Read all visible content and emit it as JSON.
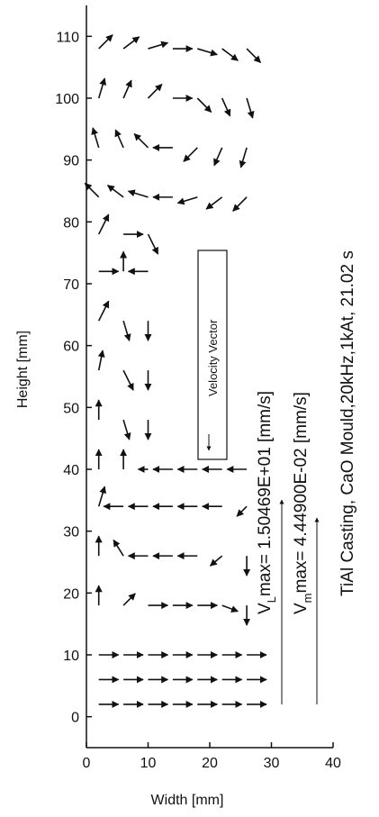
{
  "chart_data": {
    "type": "quiver",
    "xlabel": "Width  [mm]",
    "ylabel": "Height  [mm]",
    "xlim": [
      0,
      40
    ],
    "xticks": [
      0,
      10,
      20,
      30,
      40
    ],
    "ylim": [
      -5,
      115
    ],
    "yticks": [
      0,
      10,
      20,
      30,
      40,
      50,
      60,
      70,
      80,
      90,
      100,
      110
    ],
    "color": "#111111",
    "legend_label": "Velocity Vector",
    "annotations": [
      {
        "symbol": "V",
        "subscript": "L",
        "text": "max=  1.50469E+01  [mm/s]"
      },
      {
        "symbol": "V",
        "subscript": "m",
        "text": "max=  4.44900E-02  [mm/s]"
      },
      {
        "text": "TiAl Casting, CaO Mould,20kHz,1kAt, 21.02 s"
      }
    ],
    "x": [
      2,
      6,
      10,
      14,
      18,
      22,
      26,
      2,
      6,
      10,
      14,
      18,
      22,
      26,
      2,
      6,
      10,
      14,
      18,
      22,
      26,
      2,
      6,
      10,
      14,
      18,
      22,
      26,
      2,
      6,
      10,
      14,
      18,
      22,
      26,
      2,
      6,
      10,
      14,
      18,
      22,
      26,
      2,
      6,
      10,
      14,
      18,
      22,
      26,
      2,
      6,
      10,
      2,
      6,
      10,
      2,
      6,
      10,
      2,
      6,
      10,
      2,
      6,
      10,
      2,
      6,
      10,
      14,
      18,
      22,
      26,
      2,
      6,
      10,
      14,
      18,
      22,
      26,
      2,
      6,
      10,
      14,
      18,
      22,
      26,
      2,
      6,
      10,
      14,
      18,
      22,
      26
    ],
    "y": [
      2,
      2,
      2,
      2,
      2,
      2,
      2,
      6,
      6,
      6,
      6,
      6,
      6,
      6,
      10,
      10,
      10,
      10,
      10,
      10,
      10,
      18,
      18,
      18,
      18,
      18,
      18,
      18,
      26,
      26,
      26,
      26,
      26,
      26,
      26,
      34,
      34,
      34,
      34,
      34,
      34,
      34,
      40,
      40,
      40,
      40,
      40,
      40,
      40,
      48,
      48,
      48,
      56,
      56,
      56,
      64,
      64,
      64,
      72,
      72,
      72,
      78,
      78,
      78,
      84,
      84,
      84,
      84,
      84,
      84,
      84,
      92,
      92,
      92,
      92,
      92,
      92,
      92,
      100,
      100,
      100,
      100,
      100,
      100,
      100,
      108,
      108,
      108,
      108,
      108,
      108,
      108
    ],
    "u": [
      1,
      1,
      1,
      1,
      1,
      1,
      1,
      1,
      1,
      1,
      1,
      1,
      1,
      1,
      1,
      1,
      1,
      1,
      1,
      1,
      1,
      0,
      0.6,
      1,
      1,
      1,
      0.8,
      0,
      0,
      -0.5,
      -1,
      -1,
      -1,
      -0.6,
      0,
      0.3,
      -1,
      -1,
      -1,
      -1,
      -1,
      -0.5,
      0,
      0,
      -0.5,
      -1,
      -1,
      -1,
      -1,
      0,
      0.3,
      0,
      0.2,
      0.5,
      0,
      0.5,
      0.3,
      0,
      1,
      0,
      -1,
      0.5,
      1,
      0.5,
      -0.7,
      -0.8,
      -1,
      -1,
      -1,
      -0.8,
      -0.7,
      -0.3,
      -0.4,
      -0.7,
      -1,
      -0.7,
      -0.4,
      -0.3,
      0.3,
      0.4,
      0.7,
      1,
      0.7,
      0.4,
      0.3,
      0.7,
      0.8,
      1,
      1,
      1,
      0.8,
      0.7
    ],
    "v": [
      0,
      0,
      0,
      0,
      0,
      0,
      0,
      0,
      0,
      0,
      0,
      0,
      0,
      0,
      0,
      0,
      0,
      0,
      0,
      0,
      0,
      1,
      0.6,
      0,
      0,
      0,
      -0.3,
      -1,
      1,
      0.8,
      0,
      0,
      0,
      -0.5,
      -1,
      1,
      0,
      0,
      0,
      0,
      0,
      -0.5,
      1,
      1,
      0,
      0,
      0,
      0,
      0,
      1,
      -1,
      -1,
      1,
      -1,
      -1,
      1,
      -1,
      -1,
      0,
      1,
      0,
      1,
      0,
      -1,
      0.7,
      0.6,
      0.3,
      0,
      -0.3,
      -0.6,
      -0.7,
      1,
      0.9,
      0.7,
      0,
      -0.7,
      -0.9,
      -1,
      1,
      0.9,
      0.7,
      0,
      -0.7,
      -0.9,
      -1,
      0.7,
      0.6,
      0.3,
      0,
      -0.3,
      -0.6,
      -0.7
    ]
  }
}
